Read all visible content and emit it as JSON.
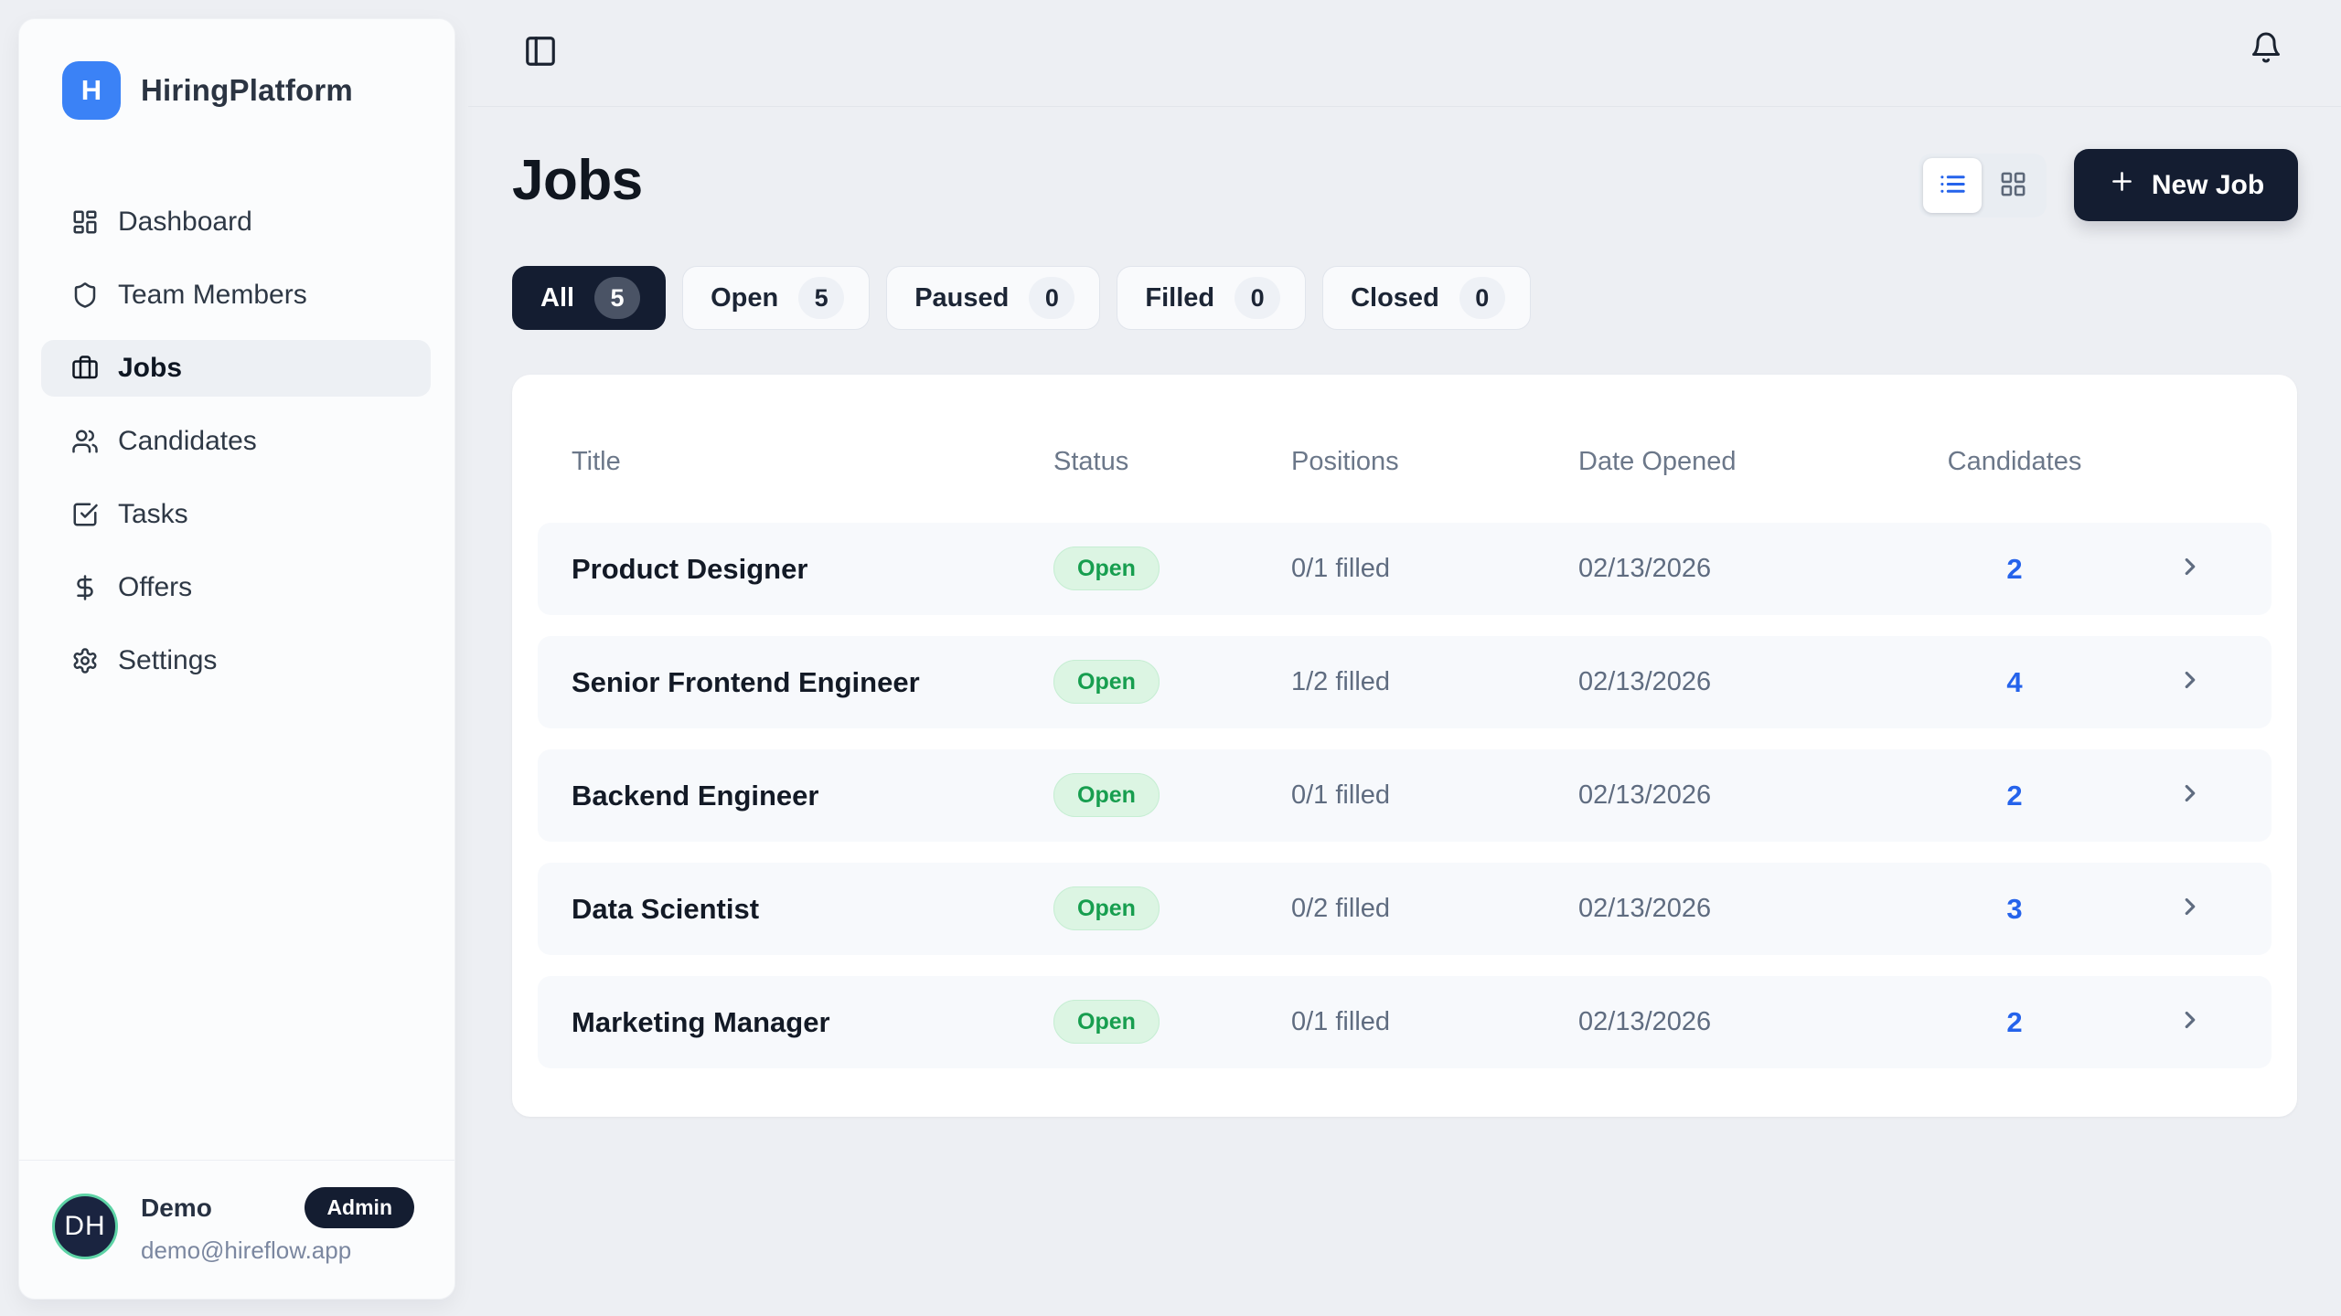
{
  "brand": {
    "initial": "H",
    "name": "HiringPlatform"
  },
  "sidebar": {
    "items": [
      {
        "label": "Dashboard",
        "icon": "dashboard-icon",
        "active": false
      },
      {
        "label": "Team Members",
        "icon": "shield-icon",
        "active": false
      },
      {
        "label": "Jobs",
        "icon": "briefcase-icon",
        "active": true
      },
      {
        "label": "Candidates",
        "icon": "users-icon",
        "active": false
      },
      {
        "label": "Tasks",
        "icon": "tasks-icon",
        "active": false
      },
      {
        "label": "Offers",
        "icon": "dollar-icon",
        "active": false
      },
      {
        "label": "Settings",
        "icon": "gear-icon",
        "active": false
      }
    ],
    "user": {
      "initials": "DH",
      "name": "Demo",
      "role": "Admin",
      "email": "demo@hireflow.app"
    }
  },
  "topbar": {
    "icons": [
      "panel-left-icon",
      "bell-icon"
    ]
  },
  "header": {
    "title": "Jobs",
    "new_job_label": "New Job",
    "view_icons": [
      "list-view-icon",
      "grid-view-icon"
    ]
  },
  "filters": [
    {
      "label": "All",
      "count": "5",
      "active": true
    },
    {
      "label": "Open",
      "count": "5",
      "active": false
    },
    {
      "label": "Paused",
      "count": "0",
      "active": false
    },
    {
      "label": "Filled",
      "count": "0",
      "active": false
    },
    {
      "label": "Closed",
      "count": "0",
      "active": false
    }
  ],
  "table": {
    "columns": [
      "Title",
      "Status",
      "Positions",
      "Date Opened",
      "Candidates"
    ],
    "rows": [
      {
        "title": "Product Designer",
        "status": "Open",
        "positions": "0/1 filled",
        "date_opened": "02/13/2026",
        "candidates": "2"
      },
      {
        "title": "Senior Frontend Engineer",
        "status": "Open",
        "positions": "1/2 filled",
        "date_opened": "02/13/2026",
        "candidates": "4"
      },
      {
        "title": "Backend Engineer",
        "status": "Open",
        "positions": "0/1 filled",
        "date_opened": "02/13/2026",
        "candidates": "2"
      },
      {
        "title": "Data Scientist",
        "status": "Open",
        "positions": "0/2 filled",
        "date_opened": "02/13/2026",
        "candidates": "3"
      },
      {
        "title": "Marketing Manager",
        "status": "Open",
        "positions": "0/1 filled",
        "date_opened": "02/13/2026",
        "candidates": "2"
      }
    ]
  },
  "colors": {
    "page_bg": "#edeff3",
    "accent_blue": "#3b82f6",
    "link_blue": "#2563eb",
    "dark_navy": "#141d31",
    "badge_green_bg": "#dcf5e3",
    "badge_green_text": "#179e4f",
    "avatar_ring": "#5ed3a6"
  }
}
